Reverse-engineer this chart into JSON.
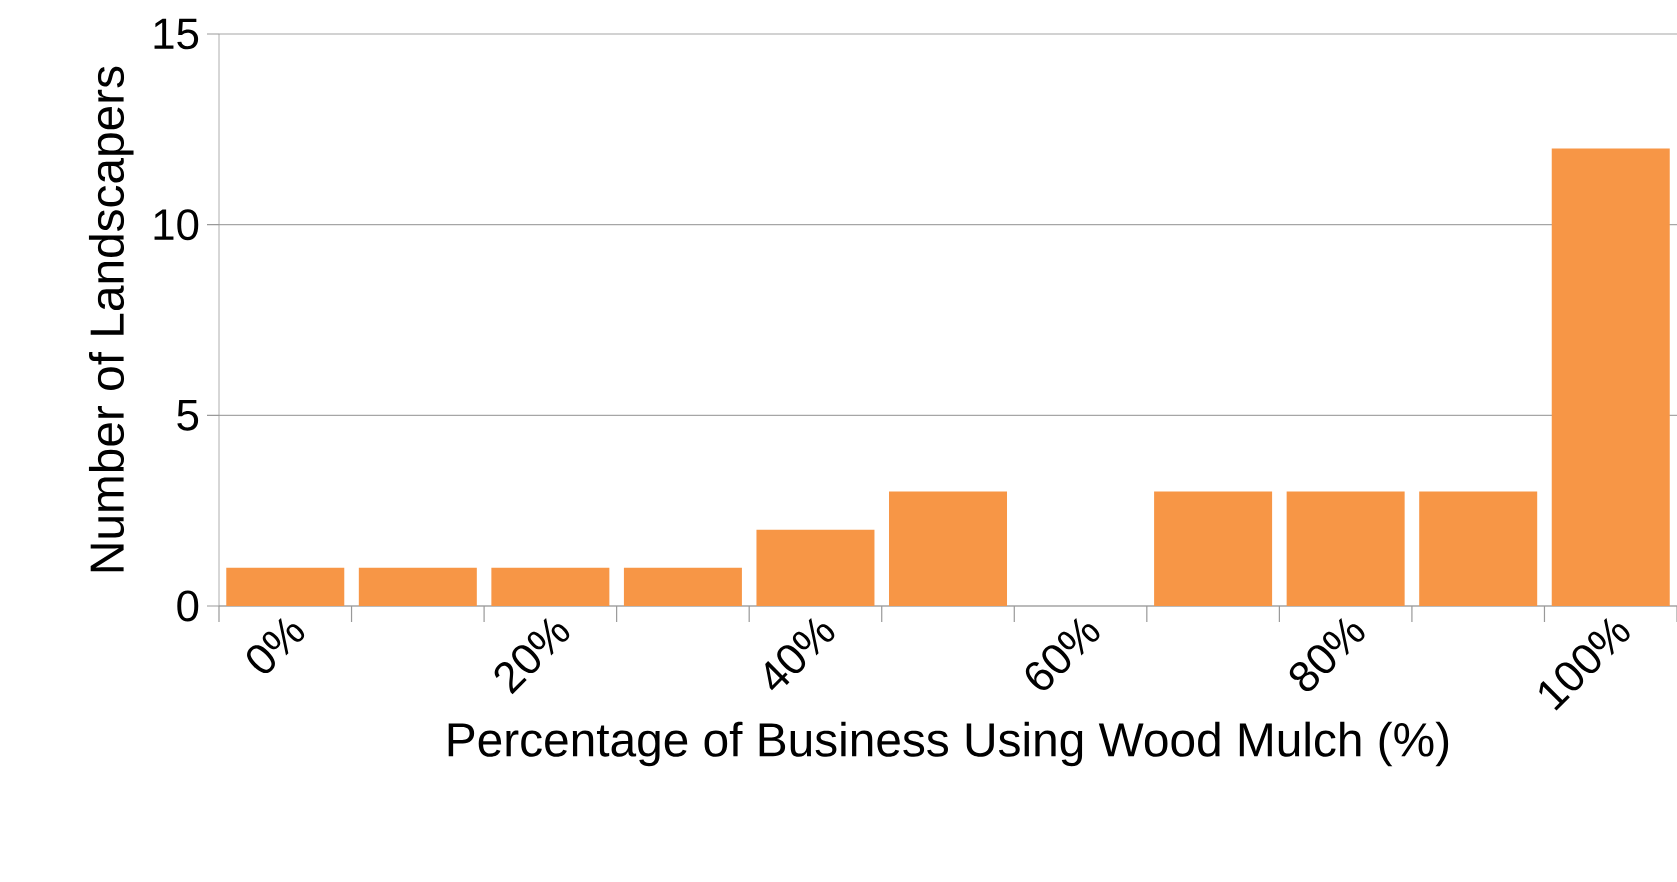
{
  "chart_data": {
    "type": "bar",
    "xlabel": "Percentage of Business Using Wood Mulch (%)",
    "ylabel": "Number of Landscapers",
    "categories": [
      "0%",
      null,
      "20%",
      null,
      "40%",
      null,
      "60%",
      null,
      "80%",
      null,
      "100%"
    ],
    "values": [
      1,
      1,
      1,
      1,
      2,
      3,
      0,
      3,
      3,
      3,
      12
    ],
    "color": "#f79646",
    "ylim": [
      0,
      15
    ],
    "yticks": [
      0,
      5,
      10,
      15
    ],
    "grid": "y"
  }
}
